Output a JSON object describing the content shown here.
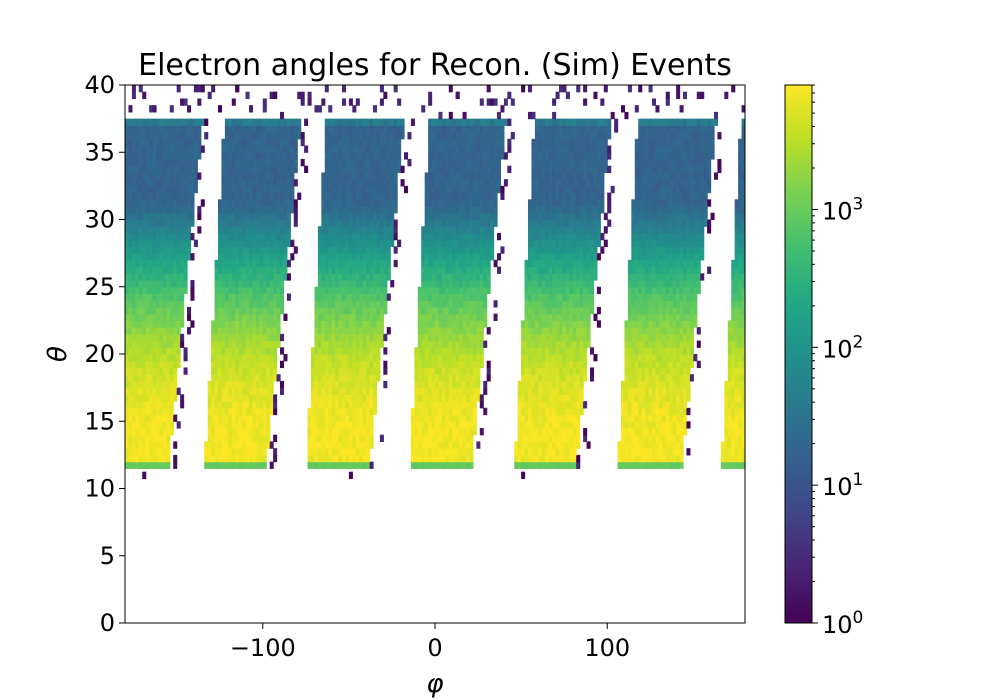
{
  "chart_data": {
    "type": "heatmap",
    "title": "Electron angles for Recon. (Sim) Events",
    "xlabel": "φ",
    "ylabel": "θ",
    "xlim": [
      -180,
      180
    ],
    "ylim": [
      0,
      40
    ],
    "x_ticks": [
      {
        "value": -100,
        "label": "−100"
      },
      {
        "value": 0,
        "label": "0"
      },
      {
        "value": 100,
        "label": "100"
      }
    ],
    "y_ticks": [
      {
        "value": 0,
        "label": "0"
      },
      {
        "value": 5,
        "label": "5"
      },
      {
        "value": 10,
        "label": "10"
      },
      {
        "value": 15,
        "label": "15"
      },
      {
        "value": 20,
        "label": "20"
      },
      {
        "value": 25,
        "label": "25"
      },
      {
        "value": 30,
        "label": "30"
      },
      {
        "value": 35,
        "label": "35"
      },
      {
        "value": 40,
        "label": "40"
      }
    ],
    "colorbar": {
      "scale": "log",
      "colormap": "viridis",
      "range": [
        1,
        8000
      ],
      "ticks": [
        {
          "value": 1,
          "base": "10",
          "exp": "0"
        },
        {
          "value": 10,
          "base": "10",
          "exp": "1"
        },
        {
          "value": 100,
          "base": "10",
          "exp": "2"
        },
        {
          "value": 1000,
          "base": "10",
          "exp": "3"
        }
      ]
    },
    "sectors": [
      {
        "phi_low": -180,
        "phi_high": -155,
        "theta_min": 11.5,
        "theta_max": 37.5
      },
      {
        "phi_low": -134,
        "phi_high": -98,
        "theta_min": 11.5,
        "theta_max": 37.5
      },
      {
        "phi_low": -75,
        "phi_high": -38,
        "theta_min": 11.5,
        "theta_max": 37.5
      },
      {
        "phi_low": -15,
        "phi_high": 21,
        "theta_min": 11.5,
        "theta_max": 37.5
      },
      {
        "phi_low": 46,
        "phi_high": 82,
        "theta_min": 11.5,
        "theta_max": 37.5
      },
      {
        "phi_low": 106,
        "phi_high": 143,
        "theta_min": 11.5,
        "theta_max": 37.5
      },
      {
        "phi_low": 166,
        "phi_high": 180,
        "theta_min": 11.5,
        "theta_max": 37.5
      }
    ]
  }
}
